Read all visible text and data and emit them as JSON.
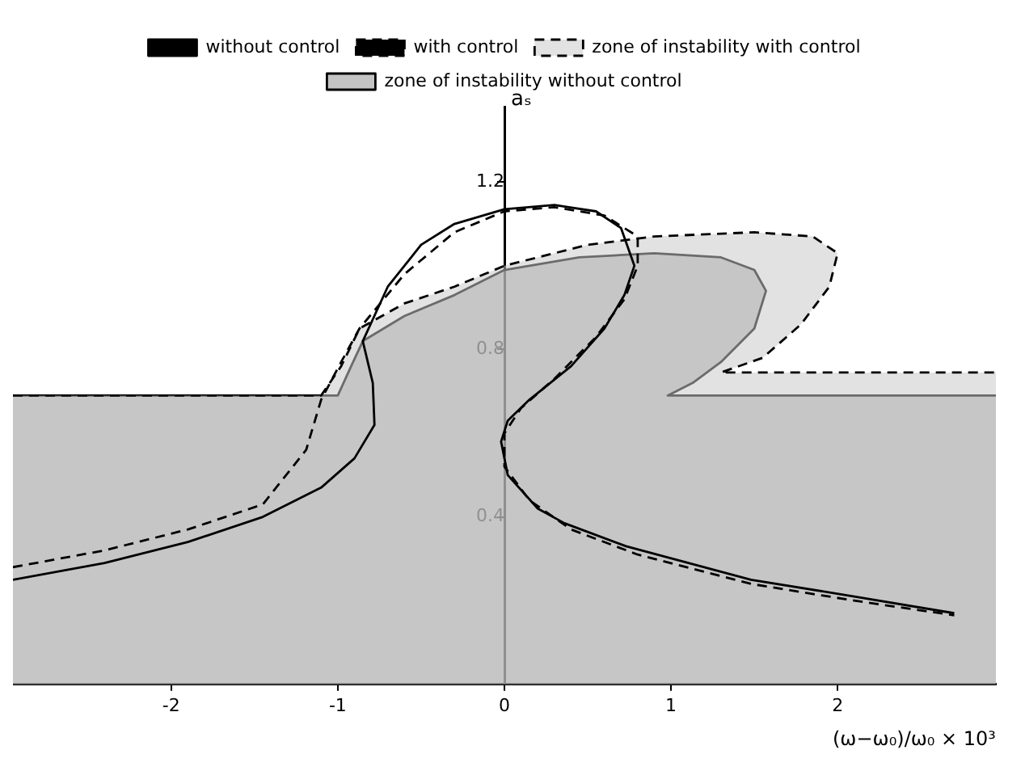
{
  "chart_data": {
    "type": "line",
    "xlabel": "(ω−ω₀)/ω₀ × 10³",
    "ylabel": "aₛ",
    "xlim": [
      -2.95,
      2.95
    ],
    "xticks": [
      -2,
      -1,
      0,
      1,
      2
    ],
    "ylim": [
      0,
      1.38
    ],
    "yticks": [
      0.4,
      0.8,
      1.2
    ],
    "grid": false,
    "legend": "top",
    "marker": "none",
    "series": [
      {
        "name": "zone of instability with control",
        "type": "area",
        "line_style": "dashed",
        "color": "#c8c8c8",
        "x": [
          -2.95,
          -1.1,
          -0.98,
          -0.87,
          -0.6,
          -0.3,
          0,
          0.5,
          0.9,
          1.5,
          1.85,
          2.0,
          1.95,
          1.78,
          1.55,
          1.3,
          2.95
        ],
        "values": [
          0.69,
          0.69,
          0.76,
          0.85,
          0.91,
          0.95,
          1.0,
          1.05,
          1.07,
          1.08,
          1.07,
          1.03,
          0.95,
          0.86,
          0.78,
          0.745,
          0.745
        ]
      },
      {
        "name": "zone of instability without control",
        "type": "area",
        "line_style": "solid",
        "color": "#909090",
        "x": [
          -2.95,
          -1.0,
          -0.92,
          -0.85,
          -0.6,
          -0.3,
          0,
          0.45,
          0.9,
          1.3,
          1.5,
          1.57,
          1.5,
          1.3,
          1.13,
          0.98,
          2.95
        ],
        "values": [
          0.69,
          0.69,
          0.76,
          0.82,
          0.88,
          0.93,
          0.99,
          1.02,
          1.03,
          1.02,
          0.99,
          0.94,
          0.85,
          0.77,
          0.72,
          0.69,
          0.69
        ]
      },
      {
        "name": "without control",
        "type": "line",
        "line_style": "solid",
        "color": "#000000",
        "x": [
          -2.95,
          -2.4,
          -1.9,
          -1.45,
          -1.1,
          -0.9,
          -0.78,
          -0.79,
          -0.85,
          -0.7,
          -0.5,
          -0.3,
          0,
          0.3,
          0.55,
          0.7,
          0.78,
          0.72,
          0.6,
          0.4,
          0.15,
          0.02,
          -0.02,
          0.02,
          0.2,
          0.36,
          0.73,
          1.48,
          2.1,
          2.7
        ],
        "values": [
          0.25,
          0.29,
          0.34,
          0.4,
          0.47,
          0.54,
          0.62,
          0.72,
          0.82,
          0.95,
          1.05,
          1.1,
          1.135,
          1.145,
          1.13,
          1.09,
          1.0,
          0.93,
          0.85,
          0.76,
          0.68,
          0.63,
          0.58,
          0.5,
          0.42,
          0.385,
          0.33,
          0.25,
          0.21,
          0.17
        ]
      },
      {
        "name": "with control",
        "type": "line",
        "line_style": "dashed",
        "color": "#000000",
        "x": [
          -2.95,
          -2.4,
          -1.9,
          -1.45,
          -1.19,
          -1.1,
          -0.98,
          -0.87,
          -0.6,
          -0.3,
          0,
          0.3,
          0.6,
          0.8,
          0.8,
          0.72,
          0.55,
          0.3,
          0.1,
          0,
          0,
          0.15,
          0.4,
          0.8,
          1.48,
          2.1,
          2.7
        ],
        "values": [
          0.28,
          0.32,
          0.37,
          0.43,
          0.56,
          0.68,
          0.77,
          0.85,
          0.98,
          1.08,
          1.13,
          1.14,
          1.12,
          1.07,
          1.0,
          0.92,
          0.83,
          0.73,
          0.66,
          0.6,
          0.52,
          0.44,
          0.37,
          0.31,
          0.24,
          0.2,
          0.165
        ]
      }
    ]
  }
}
